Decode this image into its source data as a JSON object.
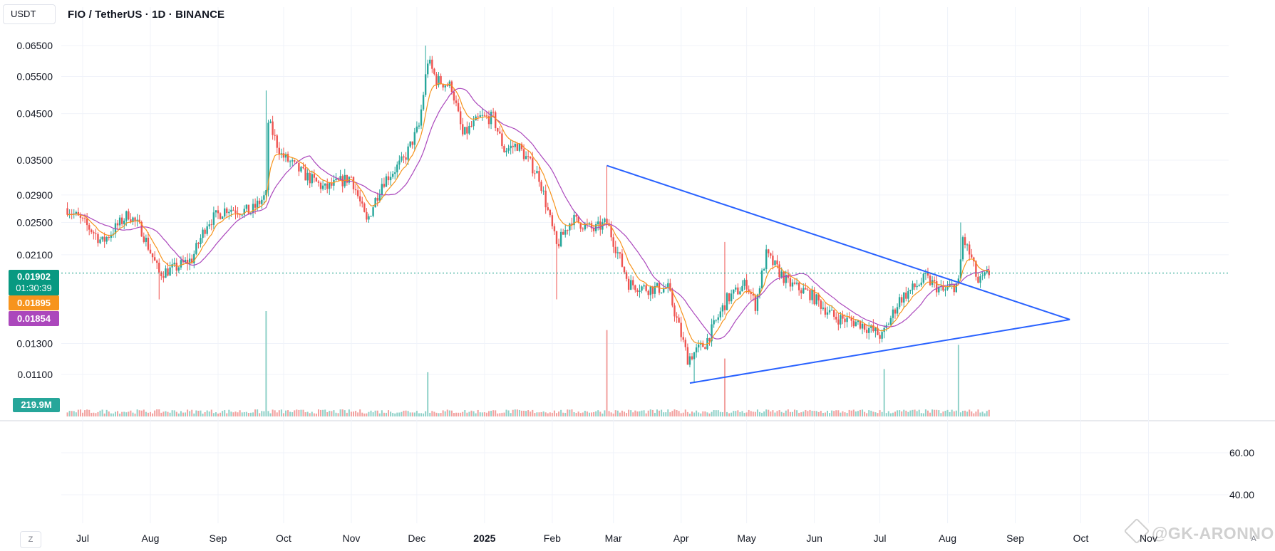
{
  "header": {
    "currency": "USDT",
    "symbol_title": "FIO / TetherUS · 1D · BINANCE"
  },
  "badges": {
    "last_price": "0.01902",
    "countdown": "01:30:39",
    "ema_value": "0.01895",
    "sma_value": "0.01854",
    "volume": "219.9M"
  },
  "controls": {
    "z_button": "Z",
    "a_button": "A"
  },
  "watermark": "@GK-ARONNO",
  "colors": {
    "up": "#26a69a",
    "down": "#ef5350",
    "ema": "#f7941d",
    "sma": "#ab47bc",
    "trendline": "#2962ff",
    "last_price_line": "#089981"
  },
  "chart_data": {
    "type": "candlestick",
    "scale": "log",
    "y_ticks": [
      "0.06500",
      "0.05500",
      "0.04500",
      "0.03500",
      "0.02900",
      "0.02500",
      "0.02100",
      "0.01300",
      "0.01100"
    ],
    "x_ticks": [
      "Jul",
      "Aug",
      "Sep",
      "Oct",
      "Nov",
      "Dec",
      "2025",
      "Feb",
      "Mar",
      "Apr",
      "May",
      "Jun",
      "Jul",
      "Aug",
      "Sep",
      "Oct",
      "Nov"
    ],
    "lower_pane_ticks": [
      "60.00",
      "40.00"
    ],
    "last_price": 0.01902,
    "ema_last": 0.01895,
    "sma_last": 0.01854,
    "close_path": [
      [
        "2024-06-24",
        0.027
      ],
      [
        "2024-07-05",
        0.024
      ],
      [
        "2024-07-10",
        0.0225
      ],
      [
        "2024-07-22",
        0.0262
      ],
      [
        "2024-07-28",
        0.024
      ],
      [
        "2024-08-05",
        0.019
      ],
      [
        "2024-08-12",
        0.0195
      ],
      [
        "2024-08-20",
        0.0205
      ],
      [
        "2024-08-27",
        0.025
      ],
      [
        "2024-09-05",
        0.027
      ],
      [
        "2024-09-16",
        0.0265
      ],
      [
        "2024-09-23",
        0.029
      ],
      [
        "2024-09-24",
        0.043
      ],
      [
        "2024-09-30",
        0.036
      ],
      [
        "2024-10-10",
        0.0325
      ],
      [
        "2024-10-20",
        0.03
      ],
      [
        "2024-11-01",
        0.032
      ],
      [
        "2024-11-08",
        0.025
      ],
      [
        "2024-11-15",
        0.031
      ],
      [
        "2024-11-25",
        0.035
      ],
      [
        "2024-12-02",
        0.042
      ],
      [
        "2024-12-06",
        0.06
      ],
      [
        "2024-12-10",
        0.054
      ],
      [
        "2024-12-17",
        0.052
      ],
      [
        "2024-12-22",
        0.04
      ],
      [
        "2024-12-30",
        0.044
      ],
      [
        "2025-01-05",
        0.044
      ],
      [
        "2025-01-10",
        0.037
      ],
      [
        "2025-01-16",
        0.038
      ],
      [
        "2025-01-26",
        0.032
      ],
      [
        "2025-02-03",
        0.022
      ],
      [
        "2025-02-10",
        0.0255
      ],
      [
        "2025-02-20",
        0.024
      ],
      [
        "2025-02-26",
        0.025
      ],
      [
        "2025-03-08",
        0.018
      ],
      [
        "2025-03-16",
        0.0175
      ],
      [
        "2025-03-26",
        0.0175
      ],
      [
        "2025-04-04",
        0.012
      ],
      [
        "2025-04-12",
        0.013
      ],
      [
        "2025-04-22",
        0.0165
      ],
      [
        "2025-05-01",
        0.018
      ],
      [
        "2025-05-05",
        0.016
      ],
      [
        "2025-05-10",
        0.021
      ],
      [
        "2025-05-20",
        0.018
      ],
      [
        "2025-05-30",
        0.017
      ],
      [
        "2025-06-10",
        0.015
      ],
      [
        "2025-06-22",
        0.0145
      ],
      [
        "2025-07-02",
        0.0135
      ],
      [
        "2025-07-10",
        0.0165
      ],
      [
        "2025-07-22",
        0.0185
      ],
      [
        "2025-07-30",
        0.0172
      ],
      [
        "2025-08-06",
        0.018
      ],
      [
        "2025-08-08",
        0.023
      ],
      [
        "2025-08-12",
        0.0205
      ],
      [
        "2025-08-15",
        0.018
      ],
      [
        "2025-08-20",
        0.019
      ]
    ],
    "trendlines": [
      {
        "from": [
          "2025-02-26",
          0.034
        ],
        "to": [
          "2025-09-26",
          0.0148
        ]
      },
      {
        "from": [
          "2025-04-05",
          0.0105
        ],
        "to": [
          "2025-09-26",
          0.0148
        ]
      }
    ],
    "volume_spikes": [
      [
        "2024-09-23",
        1.0
      ],
      [
        "2024-12-06",
        0.42
      ],
      [
        "2025-02-26",
        0.82
      ],
      [
        "2025-04-21",
        0.55
      ],
      [
        "2025-07-03",
        0.45
      ],
      [
        "2025-08-06",
        0.68
      ]
    ]
  }
}
